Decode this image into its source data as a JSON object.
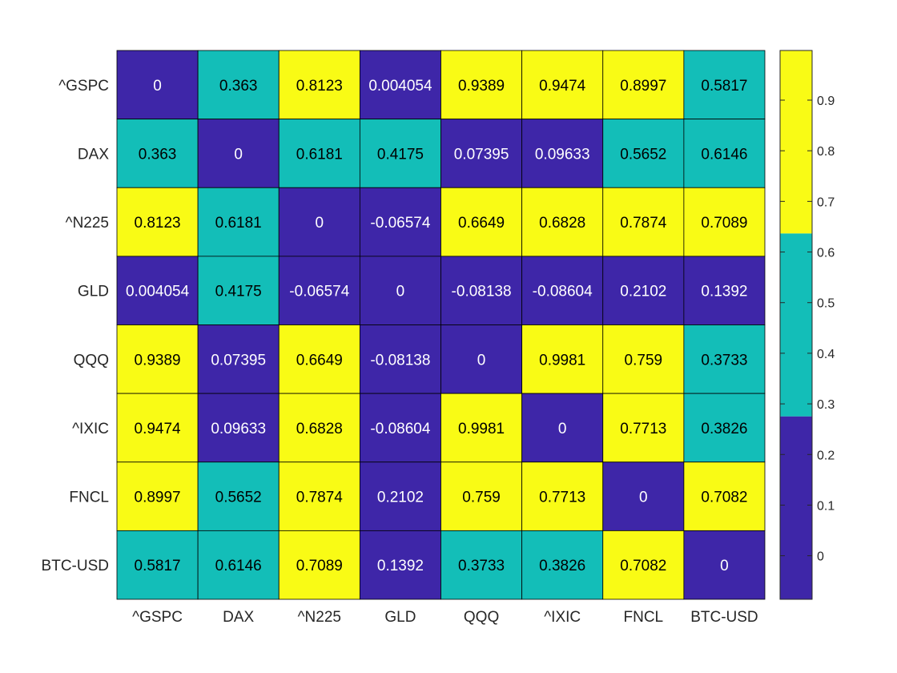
{
  "chart_data": {
    "type": "heatmap",
    "title": "",
    "xlabel": "",
    "ylabel": "",
    "x_labels": [
      "^GSPC",
      "DAX",
      "^N225",
      "GLD",
      "QQQ",
      "^IXIC",
      "FNCL",
      "BTC-USD"
    ],
    "y_labels": [
      "^GSPC",
      "DAX",
      "^N225",
      "GLD",
      "QQQ",
      "^IXIC",
      "FNCL",
      "BTC-USD"
    ],
    "values": [
      [
        "0",
        "0.363",
        "0.8123",
        "0.004054",
        "0.9389",
        "0.9474",
        "0.8997",
        "0.5817"
      ],
      [
        "0.363",
        "0",
        "0.6181",
        "0.4175",
        "0.07395",
        "0.09633",
        "0.5652",
        "0.6146"
      ],
      [
        "0.8123",
        "0.6181",
        "0",
        "-0.06574",
        "0.6649",
        "0.6828",
        "0.7874",
        "0.7089"
      ],
      [
        "0.004054",
        "0.4175",
        "-0.06574",
        "0",
        "-0.08138",
        "-0.08604",
        "0.2102",
        "0.1392"
      ],
      [
        "0.9389",
        "0.07395",
        "0.6649",
        "-0.08138",
        "0",
        "0.9981",
        "0.759",
        "0.3733"
      ],
      [
        "0.9474",
        "0.09633",
        "0.6828",
        "-0.08604",
        "0.9981",
        "0",
        "0.7713",
        "0.3826"
      ],
      [
        "0.8997",
        "0.5652",
        "0.7874",
        "0.2102",
        "0.759",
        "0.7713",
        "0",
        "0.7082"
      ],
      [
        "0.5817",
        "0.6146",
        "0.7089",
        "0.1392",
        "0.3733",
        "0.3826",
        "0.7082",
        "0"
      ]
    ],
    "colormap": {
      "colors": [
        "#3E26A8",
        "#13BEB8",
        "#F9FB15"
      ],
      "range": [
        -0.08604,
        0.9981
      ],
      "ticks": [
        "0",
        "0.1",
        "0.2",
        "0.3",
        "0.4",
        "0.5",
        "0.6",
        "0.7",
        "0.8",
        "0.9"
      ],
      "tick_values": [
        0,
        0.1,
        0.2,
        0.3,
        0.4,
        0.5,
        0.6,
        0.7,
        0.8,
        0.9
      ]
    },
    "text_colors": {
      "dark_cells": "#ffffff",
      "light_cells": "#000000"
    },
    "grid": true,
    "colorbar": "right"
  }
}
